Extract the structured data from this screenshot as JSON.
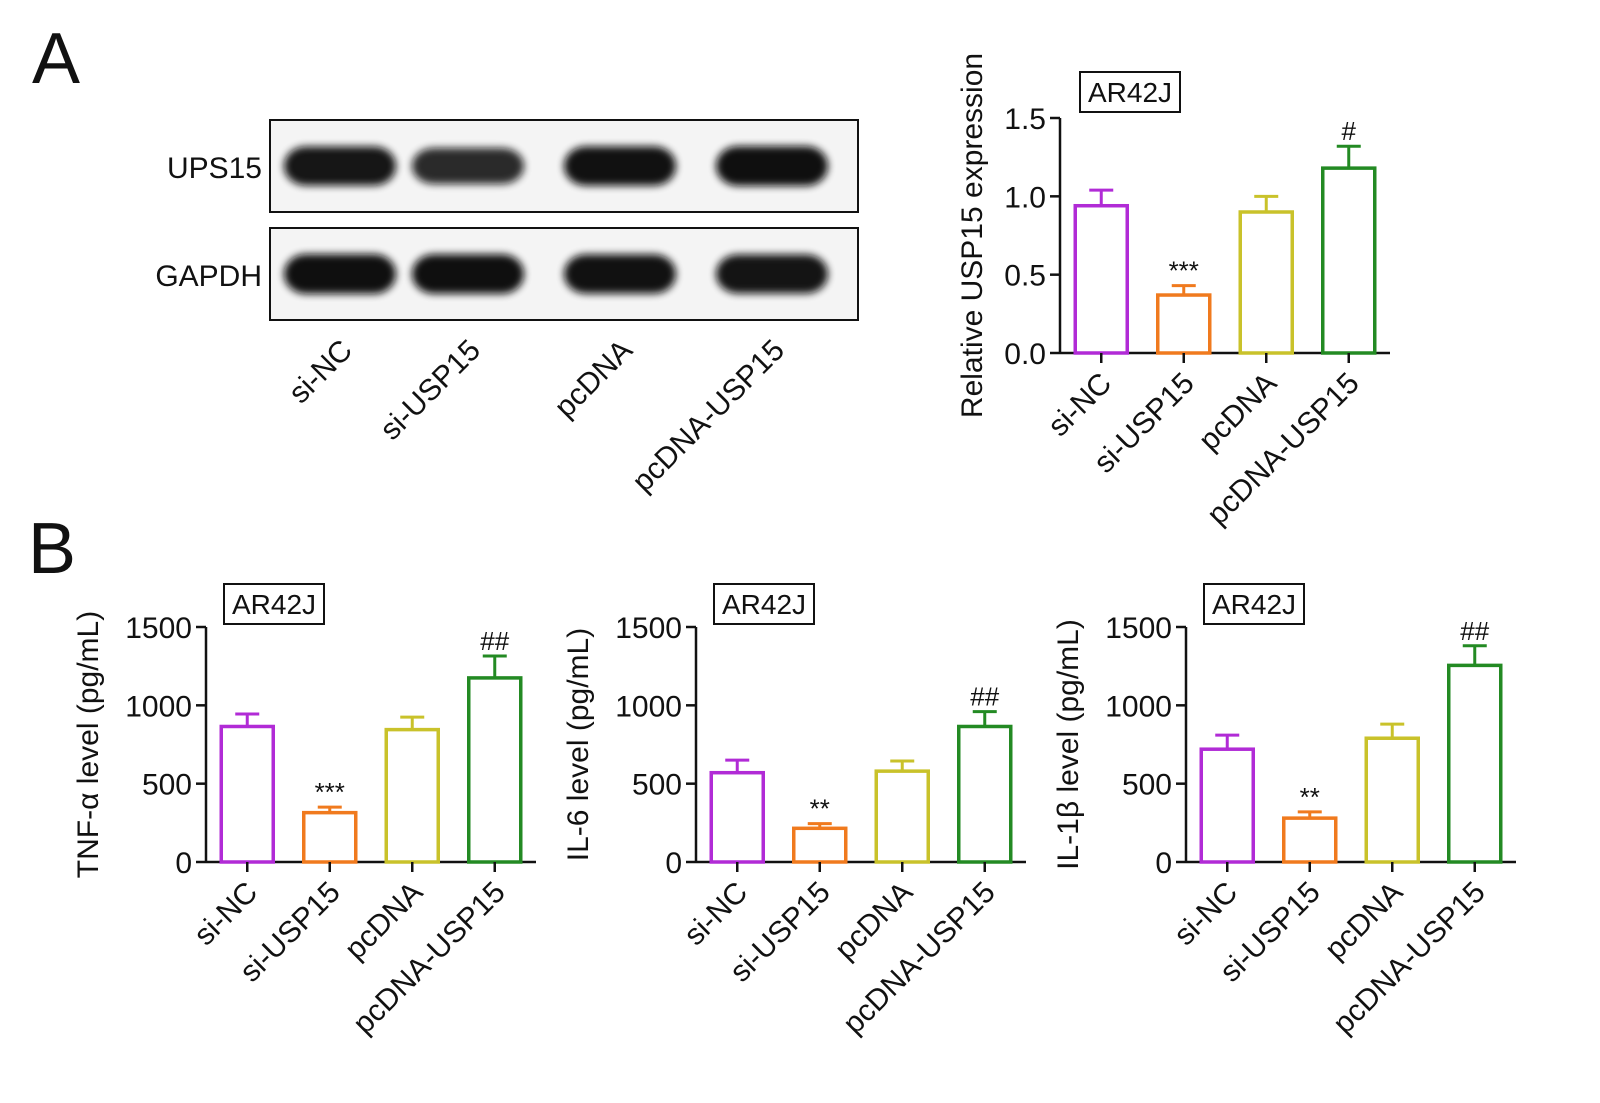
{
  "panels": {
    "a": "A",
    "b": "B"
  },
  "blot": {
    "rows": [
      {
        "label": "UPS15",
        "intensities": [
          0.92,
          0.72,
          0.95,
          0.98
        ]
      },
      {
        "label": "GAPDH",
        "intensities": [
          0.98,
          0.97,
          0.95,
          0.93
        ]
      }
    ],
    "lanes": [
      "si-NC",
      "si-USP15",
      "pcDNA",
      "pcDNA-USP15"
    ]
  },
  "colors": {
    "si-NC": "#b12bd6",
    "si-USP15": "#f07a1e",
    "pcDNA": "#c9c22a",
    "pcDNA-USP15": "#238a23"
  },
  "chart_data": [
    {
      "type": "bar",
      "cell_line": "AR42J",
      "categories": [
        "si-NC",
        "si-USP15",
        "pcDNA",
        "pcDNA-USP15"
      ],
      "values": [
        0.94,
        0.37,
        0.9,
        1.18
      ],
      "errors": [
        0.1,
        0.06,
        0.1,
        0.14
      ],
      "significance": [
        "",
        "***",
        "",
        "#"
      ],
      "ylabel": "Relative USP15 expression",
      "ylim": [
        0,
        1.5
      ],
      "yticks": [
        "0.0",
        "0.5",
        "1.0",
        "1.5"
      ]
    },
    {
      "type": "bar",
      "cell_line": "AR42J",
      "categories": [
        "si-NC",
        "si-USP15",
        "pcDNA",
        "pcDNA-USP15"
      ],
      "values": [
        865,
        315,
        845,
        1175
      ],
      "errors": [
        80,
        35,
        80,
        140
      ],
      "significance": [
        "",
        "***",
        "",
        "##"
      ],
      "ylabel": "TNF-α level (pg/mL)",
      "ylim": [
        0,
        1500
      ],
      "yticks": [
        "0",
        "500",
        "1000",
        "1500"
      ]
    },
    {
      "type": "bar",
      "cell_line": "AR42J",
      "categories": [
        "si-NC",
        "si-USP15",
        "pcDNA",
        "pcDNA-USP15"
      ],
      "values": [
        570,
        215,
        580,
        865
      ],
      "errors": [
        80,
        30,
        65,
        95
      ],
      "significance": [
        "",
        "**",
        "",
        "##"
      ],
      "ylabel": "IL-6 level (pg/mL)",
      "ylim": [
        0,
        1500
      ],
      "yticks": [
        "0",
        "500",
        "1000",
        "1500"
      ]
    },
    {
      "type": "bar",
      "cell_line": "AR42J",
      "categories": [
        "si-NC",
        "si-USP15",
        "pcDNA",
        "pcDNA-USP15"
      ],
      "values": [
        720,
        280,
        790,
        1255
      ],
      "errors": [
        90,
        40,
        90,
        125
      ],
      "significance": [
        "",
        "**",
        "",
        "##"
      ],
      "ylabel": "IL-1β level (pg/mL)",
      "ylim": [
        0,
        1500
      ],
      "yticks": [
        "0",
        "500",
        "1000",
        "1500"
      ]
    }
  ]
}
